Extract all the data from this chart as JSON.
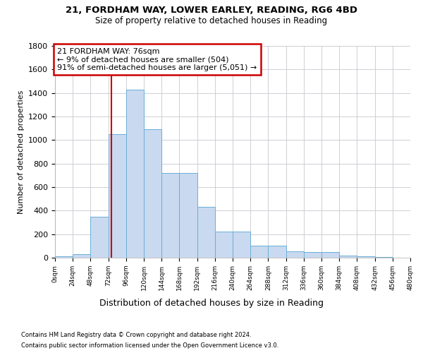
{
  "title1": "21, FORDHAM WAY, LOWER EARLEY, READING, RG6 4BD",
  "title2": "Size of property relative to detached houses in Reading",
  "xlabel": "Distribution of detached houses by size in Reading",
  "ylabel": "Number of detached properties",
  "bin_edges": [
    0,
    24,
    48,
    72,
    96,
    120,
    144,
    168,
    192,
    216,
    240,
    264,
    288,
    312,
    336,
    360,
    384,
    408,
    432,
    456,
    480
  ],
  "bar_values": [
    15,
    30,
    350,
    1050,
    1430,
    1090,
    720,
    720,
    430,
    220,
    220,
    105,
    105,
    55,
    50,
    50,
    20,
    15,
    5,
    3
  ],
  "bar_color": "#c9d9f0",
  "bar_edge_color": "#6baed6",
  "vline_x": 76,
  "vline_color": "#cc0000",
  "annotation_line1": "21 FORDHAM WAY: 76sqm",
  "annotation_line2": "← 9% of detached houses are smaller (504)",
  "annotation_line3": "91% of semi-detached houses are larger (5,051) →",
  "annotation_box_color": "#ffffff",
  "annotation_box_edge_color": "#cc0000",
  "ylim": [
    0,
    1800
  ],
  "yticks": [
    0,
    200,
    400,
    600,
    800,
    1000,
    1200,
    1400,
    1600,
    1800
  ],
  "footer1": "Contains HM Land Registry data © Crown copyright and database right 2024.",
  "footer2": "Contains public sector information licensed under the Open Government Licence v3.0.",
  "background_color": "#ffffff",
  "grid_color": "#c8c8d0"
}
